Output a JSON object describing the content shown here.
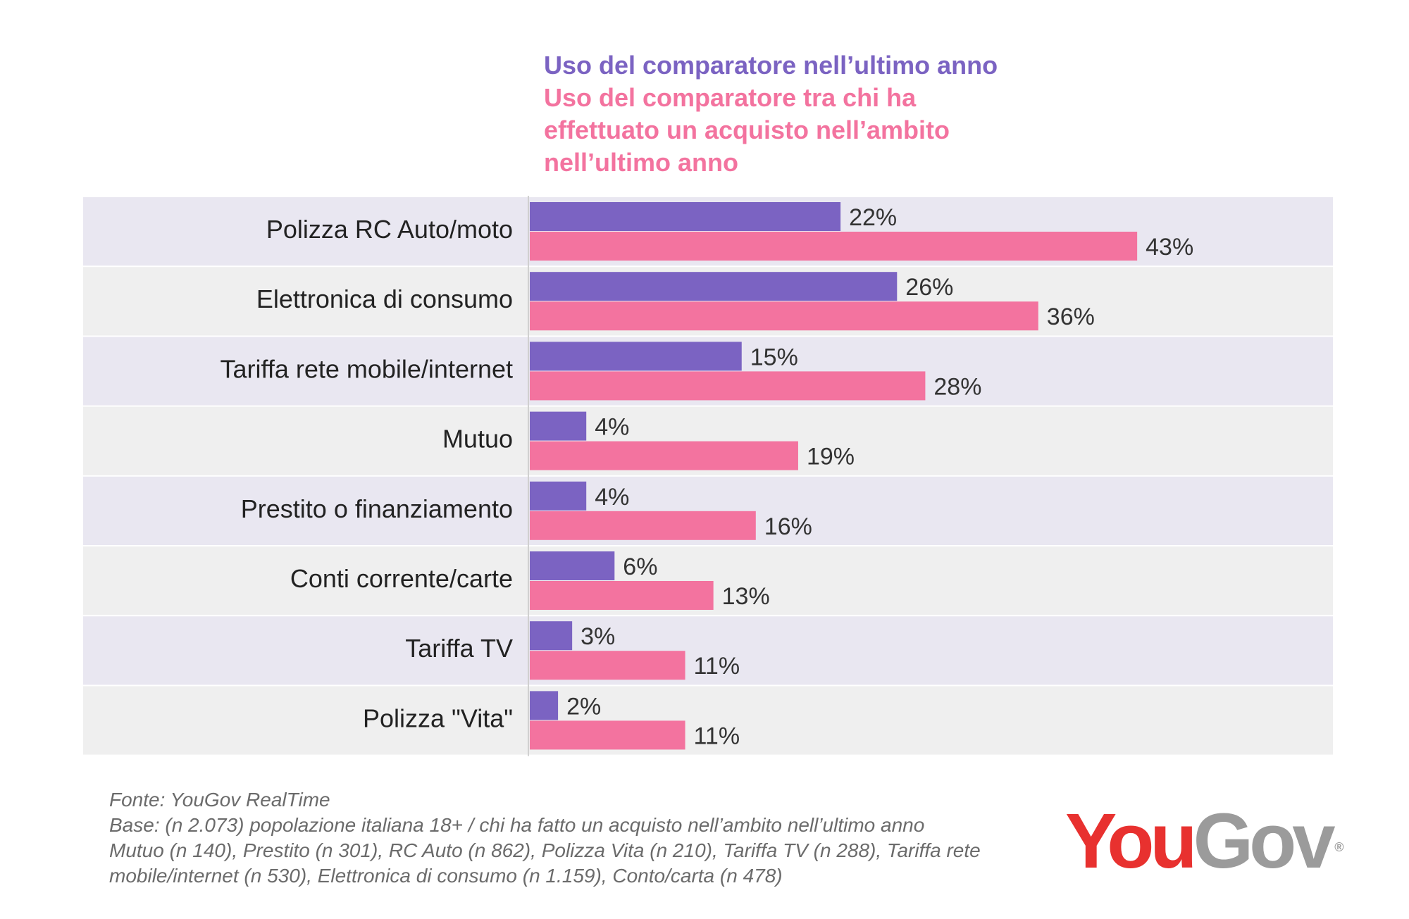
{
  "chart_data": {
    "type": "bar",
    "orientation": "horizontal",
    "categories": [
      "Polizza RC Auto/moto",
      "Elettronica di consumo",
      "Tariffa rete mobile/internet",
      "Mutuo",
      "Prestito o finanziamento",
      "Conti corrente/carte",
      "Tariffa TV",
      "Polizza \"Vita\""
    ],
    "series": [
      {
        "name": "Uso del comparatore nell’ultimo anno",
        "color": "#7B63C2",
        "values": [
          22,
          26,
          15,
          4,
          4,
          6,
          3,
          2
        ]
      },
      {
        "name": "Uso del comparatore tra chi ha effettuato un acquisto nell’ambito nell’ultimo anno",
        "color": "#F3739F",
        "values": [
          43,
          36,
          28,
          19,
          16,
          13,
          11,
          11
        ]
      }
    ],
    "value_suffix": "%",
    "xlim": [
      0,
      50
    ],
    "legend_position": "top",
    "row_colors": [
      "#E9E7F1",
      "#EFEFEF"
    ]
  },
  "legend": {
    "series1_label": "Uso del comparatore nell’ultimo anno",
    "series2_label": "Uso del comparatore tra chi ha effettuato un acquisto nell’ambito nell’ultimo anno"
  },
  "footer": {
    "source": "Fonte: YouGov RealTime",
    "base_line1": "Base: (n 2.073) popolazione italiana 18+ / chi ha fatto un acquisto nell’ambito nell’ultimo anno",
    "base_line2": "Mutuo (n 140), Prestito (n 301), RC Auto (n 862), Polizza Vita (n 210), Tariffa TV (n 288), Tariffa rete",
    "base_line3": "mobile/internet (n 530), Elettronica di consumo (n 1.159), Conto/carta (n 478)"
  },
  "logo": {
    "part1": "You",
    "part2": "Gov",
    "mark": "®"
  }
}
